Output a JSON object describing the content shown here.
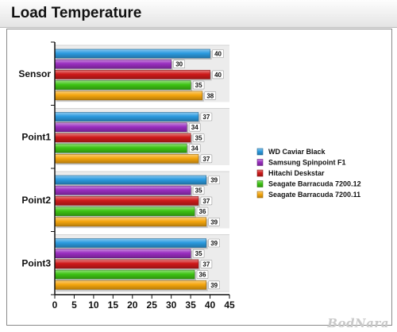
{
  "title": "Load Temperature",
  "watermark": "BodNara",
  "chart_data": {
    "type": "bar",
    "orientation": "horizontal",
    "categories": [
      "Sensor",
      "Point1",
      "Point2",
      "Point3"
    ],
    "series": [
      {
        "name": "WD Caviar Black",
        "color": "#2c9be0",
        "values": [
          40,
          37,
          39,
          39
        ]
      },
      {
        "name": "Samsung Spinpoint F1",
        "color": "#9a2ec0",
        "values": [
          30,
          34,
          35,
          35
        ]
      },
      {
        "name": "Hitachi Deskstar",
        "color": "#cf1a1a",
        "values": [
          40,
          35,
          37,
          37
        ]
      },
      {
        "name": "Seagate Barracuda 7200.12",
        "color": "#3ec414",
        "values": [
          35,
          34,
          36,
          36
        ]
      },
      {
        "name": "Seagate Barracuda 7200.11",
        "color": "#f5a60e",
        "values": [
          38,
          37,
          39,
          39
        ]
      }
    ],
    "xlim": [
      0,
      45
    ],
    "xticks": [
      "0",
      "5",
      "10",
      "15",
      "20",
      "25",
      "30",
      "35",
      "40",
      "45"
    ],
    "grid": false,
    "legend_position": "right"
  }
}
